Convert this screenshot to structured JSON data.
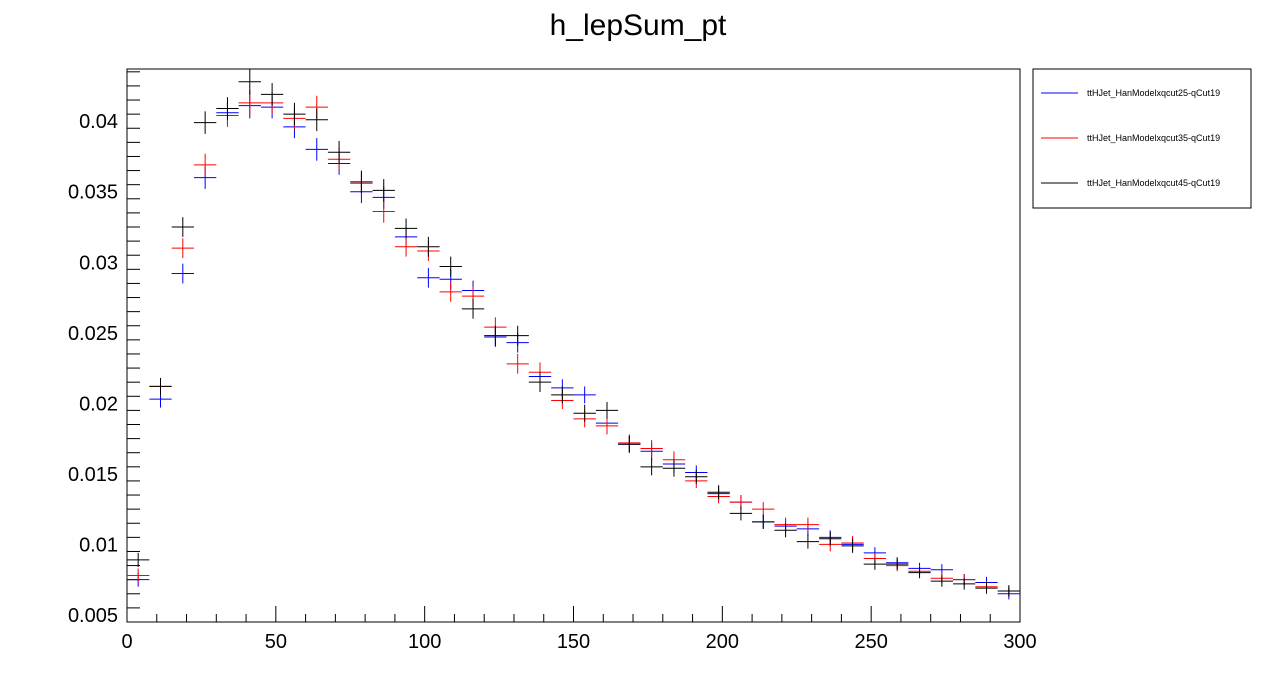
{
  "chart_data": {
    "type": "scatter",
    "title": "h_lepSum_pt",
    "xlabel": "",
    "ylabel": "",
    "xlim": [
      0,
      300
    ],
    "ylim": [
      0.0045,
      0.0437
    ],
    "x_ticks": [
      0,
      50,
      100,
      150,
      200,
      250,
      300
    ],
    "x_tick_labels": [
      "0",
      "50",
      "100",
      "150",
      "200",
      "250",
      "300"
    ],
    "y_ticks": [
      0.005,
      0.01,
      0.015,
      0.02,
      0.025,
      0.03,
      0.035,
      0.04
    ],
    "y_tick_labels": [
      "0.005",
      "0.01",
      "0.015",
      "0.02",
      "0.025",
      "0.03",
      "0.035",
      "0.04"
    ],
    "grid": false,
    "legend_position": "right",
    "x": [
      3.75,
      11.25,
      18.75,
      26.25,
      33.75,
      41.25,
      48.75,
      56.25,
      63.75,
      71.25,
      78.75,
      86.25,
      93.75,
      101.25,
      108.75,
      116.25,
      123.75,
      131.25,
      138.75,
      146.25,
      153.75,
      161.25,
      168.75,
      176.25,
      183.75,
      191.25,
      198.75,
      206.25,
      213.75,
      221.25,
      228.75,
      236.25,
      243.75,
      251.25,
      258.75,
      266.25,
      273.75,
      281.25,
      288.75,
      296.25
    ],
    "series": [
      {
        "name": "ttHJet_HanModelxqcut25-qCut19",
        "color": "#0000ff",
        "values": [
          0.0075,
          0.0203,
          0.0292,
          0.036,
          0.0406,
          0.0411,
          0.041,
          0.0396,
          0.038,
          0.037,
          0.035,
          0.0346,
          0.0318,
          0.0289,
          0.0288,
          0.028,
          0.0247,
          0.0243,
          0.0219,
          0.0211,
          0.0206,
          0.0186,
          0.0171,
          0.0166,
          0.0157,
          0.0151,
          0.0136,
          0.013,
          0.0116,
          0.0113,
          0.0111,
          0.0105,
          0.01,
          0.0094,
          0.0087,
          0.0083,
          0.0082,
          0.0075,
          0.0073,
          0.0065
        ],
        "errors": [
          0.0005,
          0.0006,
          0.0007,
          0.0008,
          0.0008,
          0.0009,
          0.0008,
          0.0008,
          0.0008,
          0.0008,
          0.0008,
          0.0008,
          0.0007,
          0.0007,
          0.0007,
          0.0007,
          0.0007,
          0.0007,
          0.0007,
          0.0006,
          0.0006,
          0.0006,
          0.0006,
          0.0006,
          0.0006,
          0.0005,
          0.0005,
          0.0005,
          0.0005,
          0.0005,
          0.0005,
          0.0005,
          0.0005,
          0.0004,
          0.0004,
          0.0004,
          0.0004,
          0.0004,
          0.0004,
          0.0004
        ]
      },
      {
        "name": "ttHJet_HanModelxqcut35-qCut19",
        "color": "#ff0000",
        "values": [
          0.0078,
          0.0212,
          0.031,
          0.0369,
          0.0404,
          0.0413,
          0.0413,
          0.0402,
          0.041,
          0.0373,
          0.0356,
          0.0336,
          0.0311,
          0.0308,
          0.0279,
          0.0276,
          0.0254,
          0.0228,
          0.0222,
          0.0202,
          0.0189,
          0.0184,
          0.0172,
          0.0168,
          0.016,
          0.0145,
          0.0134,
          0.013,
          0.0125,
          0.0114,
          0.0114,
          0.01,
          0.0101,
          0.009,
          0.0085,
          0.0081,
          0.0076,
          0.0075,
          0.007,
          0.0067
        ],
        "errors": [
          0.0005,
          0.0006,
          0.0007,
          0.0008,
          0.0008,
          0.0009,
          0.0008,
          0.0008,
          0.0008,
          0.0008,
          0.0008,
          0.0008,
          0.0007,
          0.0007,
          0.0007,
          0.0007,
          0.0007,
          0.0007,
          0.0007,
          0.0006,
          0.0006,
          0.0006,
          0.0006,
          0.0006,
          0.0006,
          0.0005,
          0.0005,
          0.0005,
          0.0005,
          0.0005,
          0.0005,
          0.0005,
          0.0005,
          0.0004,
          0.0004,
          0.0004,
          0.0004,
          0.0004,
          0.0004,
          0.0004
        ]
      },
      {
        "name": "ttHJet_HanModelxqcut45-qCut19",
        "color": "#000000",
        "values": [
          0.0089,
          0.0212,
          0.0325,
          0.0399,
          0.0409,
          0.0428,
          0.0419,
          0.0405,
          0.0401,
          0.0378,
          0.0357,
          0.0351,
          0.0324,
          0.0311,
          0.0297,
          0.0267,
          0.0248,
          0.0248,
          0.0215,
          0.0206,
          0.0193,
          0.0195,
          0.0171,
          0.0155,
          0.0154,
          0.0148,
          0.0137,
          0.0122,
          0.0116,
          0.011,
          0.0102,
          0.0104,
          0.0099,
          0.0086,
          0.0086,
          0.008,
          0.0074,
          0.0072,
          0.0069,
          0.0067
        ],
        "errors": [
          0.0005,
          0.0006,
          0.0007,
          0.0008,
          0.0008,
          0.0009,
          0.0008,
          0.0008,
          0.0008,
          0.0008,
          0.0008,
          0.0008,
          0.0007,
          0.0007,
          0.0007,
          0.0007,
          0.0007,
          0.0007,
          0.0007,
          0.0006,
          0.0006,
          0.0006,
          0.0006,
          0.0006,
          0.0006,
          0.0005,
          0.0005,
          0.0005,
          0.0005,
          0.0005,
          0.0005,
          0.0005,
          0.0005,
          0.0004,
          0.0004,
          0.0004,
          0.0004,
          0.0004,
          0.0004,
          0.0004
        ]
      }
    ]
  }
}
